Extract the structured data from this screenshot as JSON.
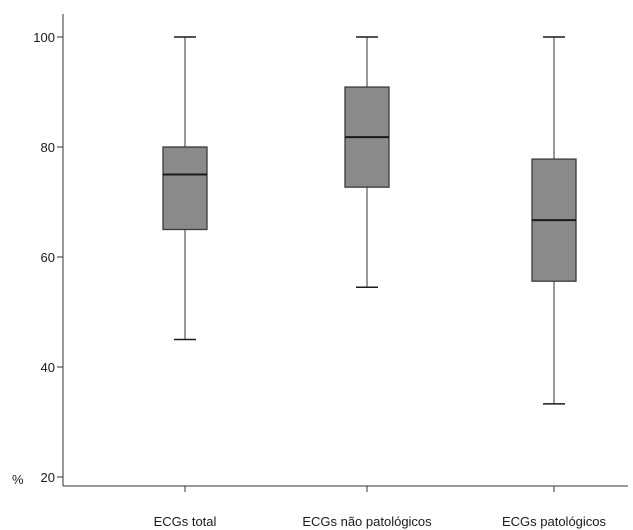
{
  "chart_data": {
    "type": "box",
    "title": "",
    "xlabel": "",
    "ylabel": "%",
    "ylim": [
      15,
      105
    ],
    "yticks": [
      20,
      40,
      60,
      80,
      100
    ],
    "grid": false,
    "colors": {
      "box": "#8a8a8a",
      "line": "#1a1a1a",
      "axis": "#333333"
    },
    "categories": [
      "ECGs total",
      "ECGs não patológicos",
      "ECGs patológicos"
    ],
    "boxes": [
      {
        "category": "ECGs total",
        "min": 45,
        "q1": 65,
        "median": 75,
        "q3": 80,
        "max": 100
      },
      {
        "category": "ECGs não patológicos",
        "min": 54.5,
        "q1": 72.7,
        "median": 81.8,
        "q3": 90.9,
        "max": 100
      },
      {
        "category": "ECGs patológicos",
        "min": 33.3,
        "q1": 55.6,
        "median": 66.7,
        "q3": 77.8,
        "max": 100
      }
    ]
  }
}
